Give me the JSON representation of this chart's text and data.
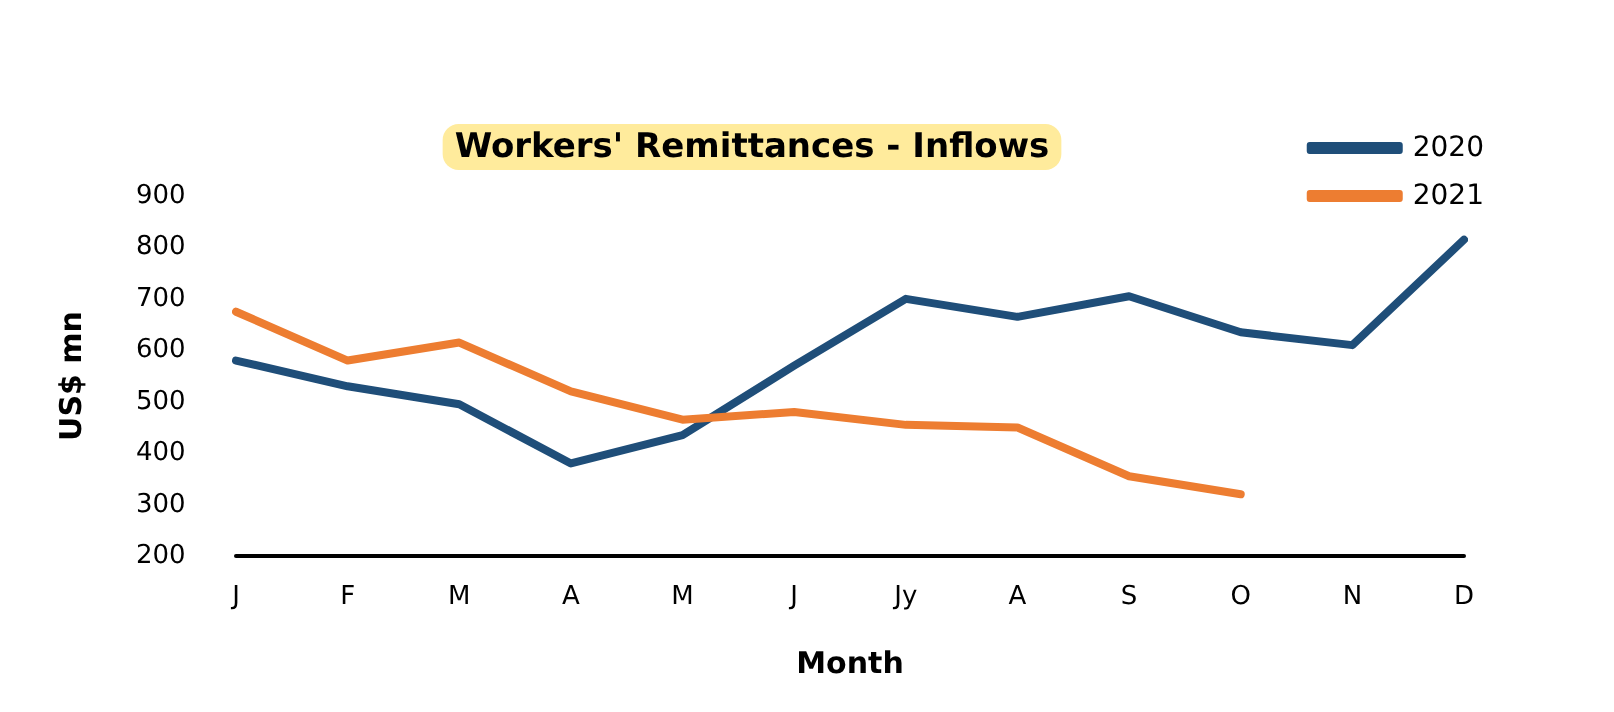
{
  "chart_data": {
    "type": "line",
    "title": "Workers' Remittances - Inflows",
    "xlabel": "Month",
    "ylabel": "US$ mn",
    "categories": [
      "J",
      "F",
      "M",
      "A",
      "M",
      "J",
      "Jy",
      "A",
      "S",
      "O",
      "N",
      "D"
    ],
    "series": [
      {
        "name": "2020",
        "color": "#1f4e79",
        "values": [
          580,
          530,
          495,
          380,
          435,
          570,
          700,
          665,
          705,
          635,
          610,
          815
        ]
      },
      {
        "name": "2021",
        "color": "#ed7d31",
        "values": [
          675,
          580,
          615,
          520,
          465,
          480,
          455,
          450,
          355,
          320,
          null,
          null
        ]
      }
    ],
    "ylim": [
      200,
      900
    ],
    "yticks": [
      200,
      300,
      400,
      500,
      600,
      700,
      800,
      900
    ],
    "grid": false,
    "legend": "top right",
    "marker": "none",
    "line_style": "solid"
  }
}
